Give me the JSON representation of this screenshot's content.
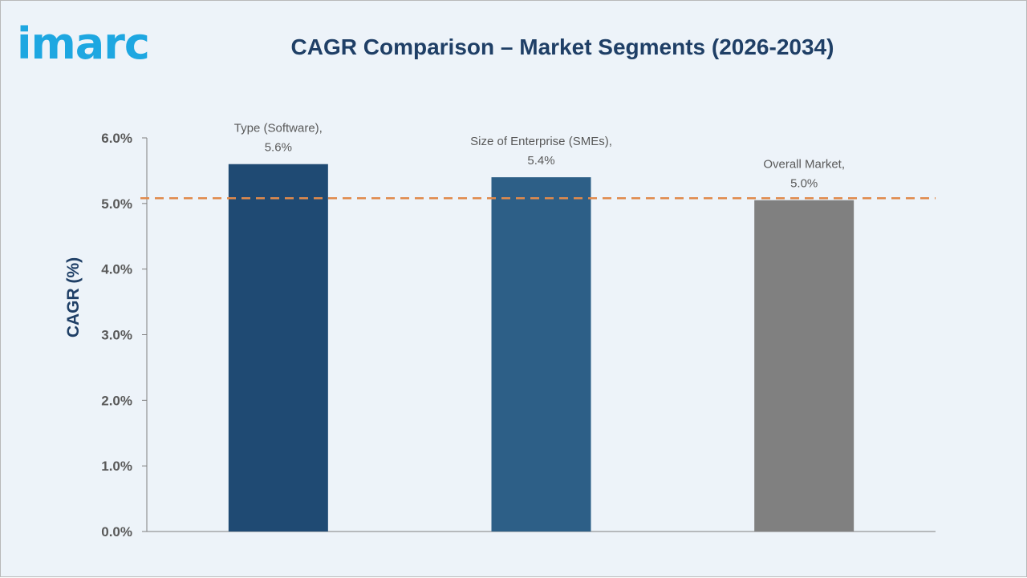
{
  "logo": {
    "text": "imarc"
  },
  "chart_data": {
    "type": "bar",
    "title": "CAGR Comparison – Market Segments (2026-2034)",
    "xlabel": "",
    "ylabel": "CAGR (%)",
    "ylim": [
      0,
      6
    ],
    "yticks": [
      "0.0%",
      "1.0%",
      "2.0%",
      "3.0%",
      "4.0%",
      "5.0%",
      "6.0%"
    ],
    "categories": [
      "Type (Software),",
      "Size of Enterprise (SMEs),",
      "Overall Market,"
    ],
    "values": [
      5.6,
      5.4,
      5.05
    ],
    "data_labels": [
      "5.6%",
      "5.4%",
      "5.0%"
    ],
    "colors": [
      "#1f4a73",
      "#2d5f87",
      "#808080"
    ],
    "reference_line": {
      "value": 5.08,
      "color": "#e08a4c",
      "style": "dashed"
    },
    "grid": false,
    "legend": "none"
  }
}
